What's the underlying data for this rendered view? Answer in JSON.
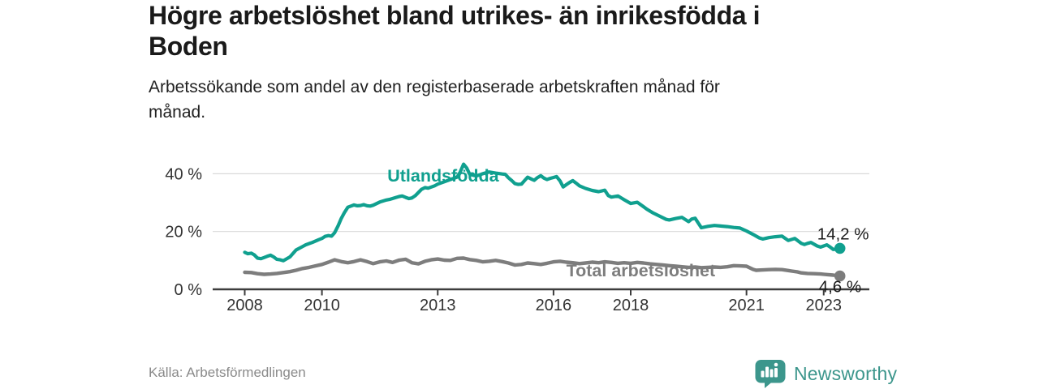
{
  "header": {
    "title_lines": [
      "Högre arbetslöshet bland utrikes- än inrikesfödda i",
      "Boden"
    ],
    "subtitle_lines": [
      "Arbetssökande som andel av den registerbaserade arbetskraften månad för",
      "månad."
    ]
  },
  "footer": {
    "source": "Källa: Arbetsförmedlingen",
    "logo_text": "Newsworthy",
    "logo_color": "#3c968c"
  },
  "chart_data": {
    "type": "line",
    "title": "Högre arbetslöshet bland utrikes- än inrikesfödda i Boden",
    "subtitle": "Arbetssökande som andel av den registerbaserade arbetskraften månad för månad.",
    "x_unit": "year (monthly observations)",
    "y_unit": "% av registerbaserade arbetskraften",
    "legend_position": "inline-labels",
    "axes": {
      "x_range": [
        2008,
        2023.5
      ],
      "y_range": [
        0,
        45
      ],
      "grid": "horizontal",
      "x_ticks": [
        {
          "year": 2008,
          "label": "2008"
        },
        {
          "year": 2010,
          "label": "2010"
        },
        {
          "year": 2013,
          "label": "2013"
        },
        {
          "year": 2016,
          "label": "2016"
        },
        {
          "year": 2018,
          "label": "2018"
        },
        {
          "year": 2021,
          "label": "2021"
        },
        {
          "year": 2023,
          "label": "2023"
        }
      ],
      "y_ticks": [
        {
          "value": 0,
          "label": "0 %"
        },
        {
          "value": 20,
          "label": "20 %"
        },
        {
          "value": 40,
          "label": "40 %"
        }
      ]
    },
    "style": {
      "grid_color": "#d9d9d9",
      "axis_color": "#3d3d3d",
      "tick_label_color": "#333333",
      "value_label_color": "#1a1a1a"
    },
    "series": [
      {
        "id": "utlandsfodda",
        "name": "Utlandsfödda",
        "color": "#10a08f",
        "width": 4.2,
        "end_label": "14,2 %",
        "end_value": 14.2,
        "label_at": {
          "year": 2013.14,
          "pct": 39.4
        },
        "points": [
          [
            2008.0,
            12.8
          ],
          [
            2008.08,
            12.3
          ],
          [
            2008.17,
            12.5
          ],
          [
            2008.25,
            11.9
          ],
          [
            2008.33,
            10.8
          ],
          [
            2008.42,
            10.6
          ],
          [
            2008.5,
            11.0
          ],
          [
            2008.58,
            11.4
          ],
          [
            2008.67,
            11.8
          ],
          [
            2008.75,
            11.2
          ],
          [
            2008.83,
            10.4
          ],
          [
            2008.92,
            10.2
          ],
          [
            2009.0,
            9.9
          ],
          [
            2009.17,
            11.2
          ],
          [
            2009.33,
            13.6
          ],
          [
            2009.5,
            14.8
          ],
          [
            2009.58,
            15.4
          ],
          [
            2009.75,
            16.2
          ],
          [
            2009.92,
            17.2
          ],
          [
            2010.0,
            17.6
          ],
          [
            2010.08,
            18.3
          ],
          [
            2010.17,
            18.6
          ],
          [
            2010.25,
            18.4
          ],
          [
            2010.33,
            19.6
          ],
          [
            2010.42,
            22.0
          ],
          [
            2010.5,
            24.5
          ],
          [
            2010.58,
            26.5
          ],
          [
            2010.67,
            28.4
          ],
          [
            2010.75,
            28.8
          ],
          [
            2010.83,
            29.2
          ],
          [
            2010.92,
            28.9
          ],
          [
            2011.0,
            29.0
          ],
          [
            2011.08,
            29.3
          ],
          [
            2011.17,
            28.9
          ],
          [
            2011.25,
            28.8
          ],
          [
            2011.33,
            29.1
          ],
          [
            2011.5,
            30.2
          ],
          [
            2011.67,
            30.9
          ],
          [
            2011.75,
            31.1
          ],
          [
            2011.92,
            31.8
          ],
          [
            2012.0,
            32.1
          ],
          [
            2012.08,
            32.3
          ],
          [
            2012.17,
            31.8
          ],
          [
            2012.25,
            31.4
          ],
          [
            2012.33,
            31.6
          ],
          [
            2012.42,
            32.4
          ],
          [
            2012.5,
            33.5
          ],
          [
            2012.58,
            34.6
          ],
          [
            2012.67,
            35.2
          ],
          [
            2012.75,
            35.0
          ],
          [
            2012.92,
            35.8
          ],
          [
            2013.0,
            36.4
          ],
          [
            2013.17,
            37.2
          ],
          [
            2013.33,
            38.0
          ],
          [
            2013.5,
            38.8
          ],
          [
            2013.58,
            40.5
          ],
          [
            2013.67,
            43.3
          ],
          [
            2013.75,
            42.0
          ],
          [
            2013.83,
            39.8
          ],
          [
            2014.0,
            39.2
          ],
          [
            2014.17,
            40.0
          ],
          [
            2014.33,
            40.6
          ],
          [
            2014.5,
            40.2
          ],
          [
            2014.67,
            39.9
          ],
          [
            2014.75,
            39.8
          ],
          [
            2014.83,
            38.6
          ],
          [
            2014.92,
            37.6
          ],
          [
            2015.0,
            36.6
          ],
          [
            2015.08,
            36.3
          ],
          [
            2015.17,
            36.4
          ],
          [
            2015.25,
            37.6
          ],
          [
            2015.33,
            38.8
          ],
          [
            2015.42,
            38.2
          ],
          [
            2015.5,
            37.7
          ],
          [
            2015.58,
            38.6
          ],
          [
            2015.67,
            39.3
          ],
          [
            2015.75,
            38.5
          ],
          [
            2015.83,
            38.0
          ],
          [
            2015.92,
            38.4
          ],
          [
            2016.0,
            38.7
          ],
          [
            2016.08,
            39.0
          ],
          [
            2016.17,
            37.5
          ],
          [
            2016.25,
            35.4
          ],
          [
            2016.33,
            36.2
          ],
          [
            2016.42,
            37.0
          ],
          [
            2016.5,
            37.6
          ],
          [
            2016.58,
            36.8
          ],
          [
            2016.67,
            35.8
          ],
          [
            2016.83,
            34.9
          ],
          [
            2017.0,
            34.2
          ],
          [
            2017.17,
            33.8
          ],
          [
            2017.33,
            34.3
          ],
          [
            2017.42,
            32.4
          ],
          [
            2017.5,
            31.9
          ],
          [
            2017.67,
            32.3
          ],
          [
            2017.83,
            31.0
          ],
          [
            2018.0,
            29.7
          ],
          [
            2018.17,
            30.1
          ],
          [
            2018.33,
            28.6
          ],
          [
            2018.42,
            27.7
          ],
          [
            2018.58,
            26.4
          ],
          [
            2018.75,
            25.3
          ],
          [
            2018.92,
            24.2
          ],
          [
            2019.0,
            24.0
          ],
          [
            2019.17,
            24.5
          ],
          [
            2019.33,
            24.9
          ],
          [
            2019.5,
            23.4
          ],
          [
            2019.58,
            24.3
          ],
          [
            2019.67,
            24.6
          ],
          [
            2019.83,
            21.3
          ],
          [
            2020.0,
            21.8
          ],
          [
            2020.17,
            22.1
          ],
          [
            2020.33,
            21.9
          ],
          [
            2020.5,
            21.7
          ],
          [
            2020.67,
            21.4
          ],
          [
            2020.83,
            21.2
          ],
          [
            2021.0,
            20.2
          ],
          [
            2021.17,
            19.0
          ],
          [
            2021.33,
            17.8
          ],
          [
            2021.42,
            17.4
          ],
          [
            2021.58,
            17.9
          ],
          [
            2021.75,
            18.2
          ],
          [
            2021.92,
            18.4
          ],
          [
            2022.08,
            16.9
          ],
          [
            2022.25,
            17.6
          ],
          [
            2022.42,
            15.9
          ],
          [
            2022.5,
            15.5
          ],
          [
            2022.58,
            15.9
          ],
          [
            2022.67,
            16.2
          ],
          [
            2022.83,
            15.0
          ],
          [
            2022.92,
            14.6
          ],
          [
            2023.0,
            15.0
          ],
          [
            2023.08,
            15.4
          ],
          [
            2023.17,
            14.6
          ],
          [
            2023.25,
            13.8
          ],
          [
            2023.33,
            13.9
          ],
          [
            2023.42,
            14.2
          ]
        ]
      },
      {
        "id": "total",
        "name": "Total arbetslöshet",
        "color": "#7d7d7d",
        "width": 4.4,
        "end_label": "4,6 %",
        "end_value": 4.6,
        "label_at": {
          "year": 2018.26,
          "pct": 6.6
        },
        "points": [
          [
            2008.0,
            5.9
          ],
          [
            2008.17,
            5.8
          ],
          [
            2008.33,
            5.4
          ],
          [
            2008.5,
            5.2
          ],
          [
            2008.67,
            5.3
          ],
          [
            2008.83,
            5.5
          ],
          [
            2009.0,
            5.8
          ],
          [
            2009.17,
            6.1
          ],
          [
            2009.33,
            6.6
          ],
          [
            2009.5,
            7.2
          ],
          [
            2009.67,
            7.6
          ],
          [
            2009.83,
            8.1
          ],
          [
            2010.0,
            8.6
          ],
          [
            2010.17,
            9.4
          ],
          [
            2010.33,
            10.2
          ],
          [
            2010.5,
            9.6
          ],
          [
            2010.67,
            9.2
          ],
          [
            2010.83,
            9.6
          ],
          [
            2011.0,
            10.2
          ],
          [
            2011.17,
            9.6
          ],
          [
            2011.33,
            8.9
          ],
          [
            2011.5,
            9.5
          ],
          [
            2011.67,
            9.8
          ],
          [
            2011.83,
            9.3
          ],
          [
            2012.0,
            10.1
          ],
          [
            2012.17,
            10.4
          ],
          [
            2012.33,
            9.2
          ],
          [
            2012.5,
            8.8
          ],
          [
            2012.67,
            9.7
          ],
          [
            2012.83,
            10.2
          ],
          [
            2013.0,
            10.5
          ],
          [
            2013.17,
            10.1
          ],
          [
            2013.33,
            10.0
          ],
          [
            2013.5,
            10.7
          ],
          [
            2013.67,
            10.8
          ],
          [
            2013.83,
            10.3
          ],
          [
            2014.0,
            10.0
          ],
          [
            2014.17,
            9.5
          ],
          [
            2014.33,
            9.7
          ],
          [
            2014.5,
            10.0
          ],
          [
            2014.67,
            9.6
          ],
          [
            2014.83,
            9.1
          ],
          [
            2015.0,
            8.4
          ],
          [
            2015.17,
            8.6
          ],
          [
            2015.33,
            9.1
          ],
          [
            2015.5,
            8.9
          ],
          [
            2015.67,
            8.6
          ],
          [
            2015.83,
            9.0
          ],
          [
            2016.0,
            9.5
          ],
          [
            2016.17,
            9.7
          ],
          [
            2016.33,
            9.4
          ],
          [
            2016.5,
            9.2
          ],
          [
            2016.67,
            8.9
          ],
          [
            2016.83,
            9.1
          ],
          [
            2017.0,
            9.4
          ],
          [
            2017.17,
            9.2
          ],
          [
            2017.33,
            9.5
          ],
          [
            2017.5,
            9.3
          ],
          [
            2017.67,
            9.0
          ],
          [
            2017.83,
            9.2
          ],
          [
            2018.0,
            9.0
          ],
          [
            2018.17,
            9.3
          ],
          [
            2018.33,
            9.1
          ],
          [
            2018.5,
            8.8
          ],
          [
            2018.67,
            8.6
          ],
          [
            2018.83,
            8.4
          ],
          [
            2019.0,
            8.2
          ],
          [
            2019.17,
            8.0
          ],
          [
            2019.33,
            7.8
          ],
          [
            2019.5,
            7.6
          ],
          [
            2019.67,
            7.7
          ],
          [
            2019.83,
            7.5
          ],
          [
            2020.0,
            7.6
          ],
          [
            2020.17,
            7.7
          ],
          [
            2020.33,
            7.6
          ],
          [
            2020.5,
            7.8
          ],
          [
            2020.67,
            8.2
          ],
          [
            2020.83,
            8.1
          ],
          [
            2021.0,
            8.0
          ],
          [
            2021.17,
            6.9
          ],
          [
            2021.25,
            6.6
          ],
          [
            2021.42,
            6.7
          ],
          [
            2021.58,
            6.8
          ],
          [
            2021.75,
            6.9
          ],
          [
            2021.92,
            6.8
          ],
          [
            2022.08,
            6.5
          ],
          [
            2022.17,
            6.3
          ],
          [
            2022.33,
            6.0
          ],
          [
            2022.42,
            5.7
          ],
          [
            2022.58,
            5.5
          ],
          [
            2022.75,
            5.4
          ],
          [
            2022.92,
            5.3
          ],
          [
            2023.08,
            5.1
          ],
          [
            2023.25,
            4.9
          ],
          [
            2023.42,
            4.6
          ]
        ]
      }
    ]
  }
}
